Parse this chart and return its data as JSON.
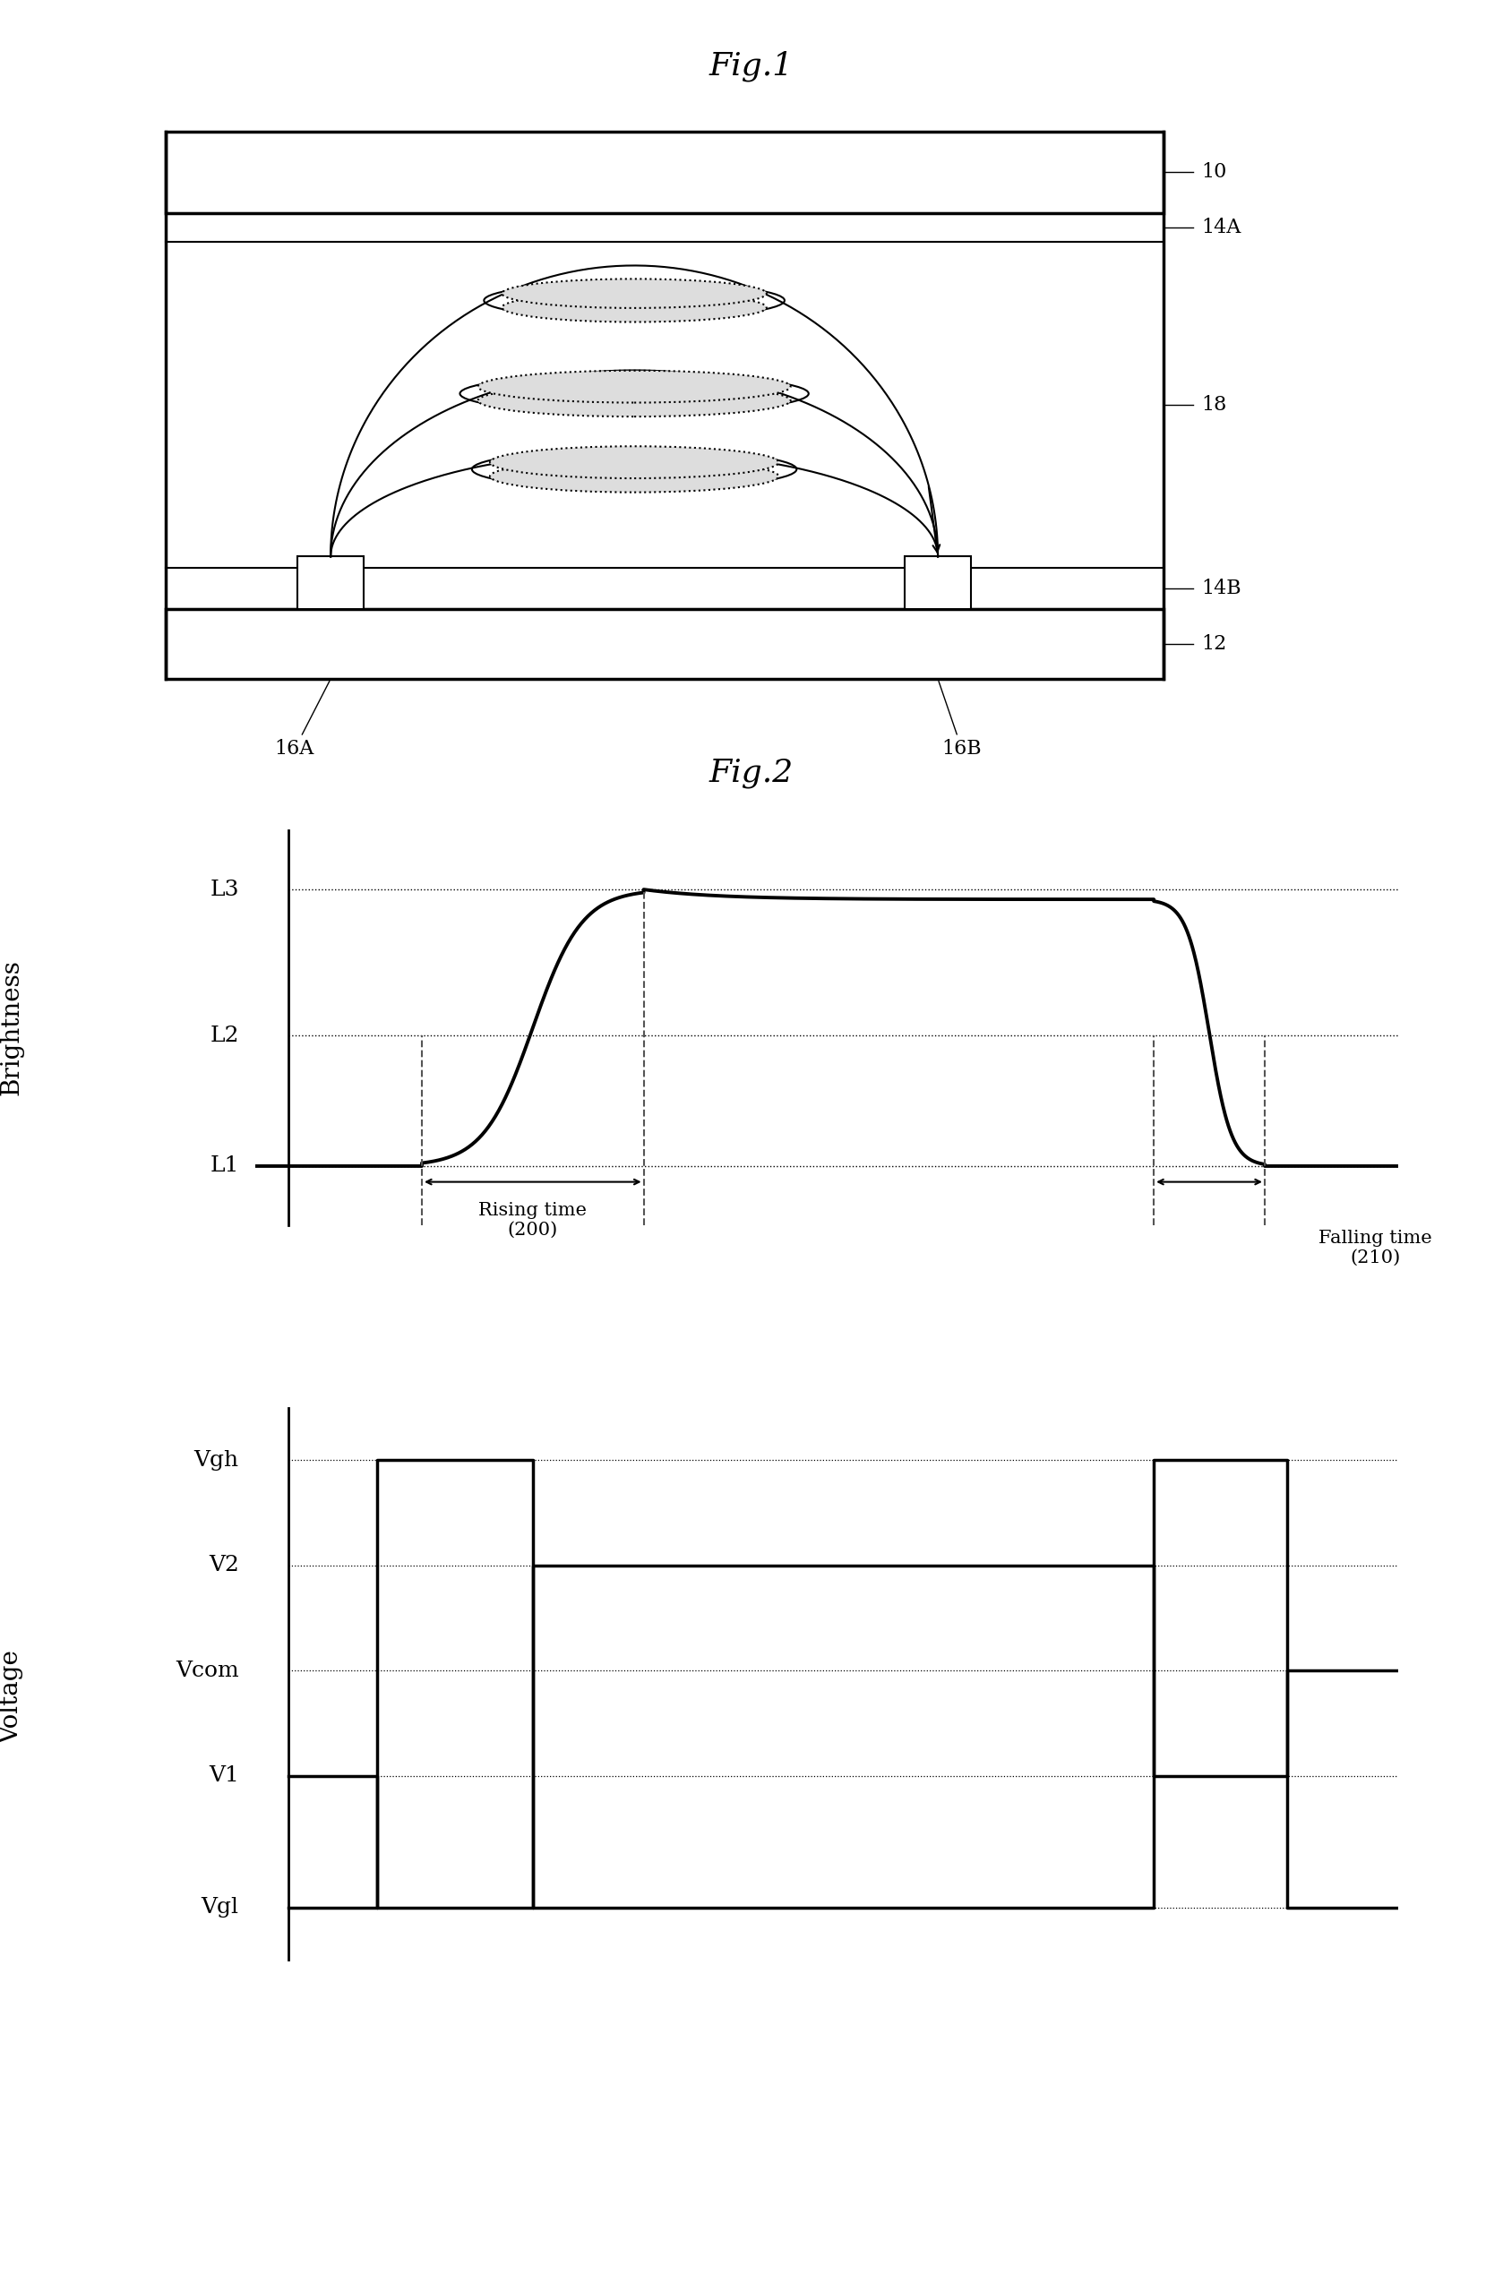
{
  "fig1_title": "Fig.1",
  "fig2_title": "Fig.2",
  "brightness_labels": [
    "L3",
    "L2",
    "L1"
  ],
  "voltage_labels": [
    "Vgh",
    "V2",
    "Vcom",
    "V1",
    "Vgl"
  ],
  "rising_time_label": "Rising time\n(200)",
  "falling_time_label": "Falling time\n(210)",
  "ylabel_brightness": "Brightness",
  "ylabel_voltage": "Voltage",
  "line_color": "#000000",
  "bg_color": "#ffffff"
}
